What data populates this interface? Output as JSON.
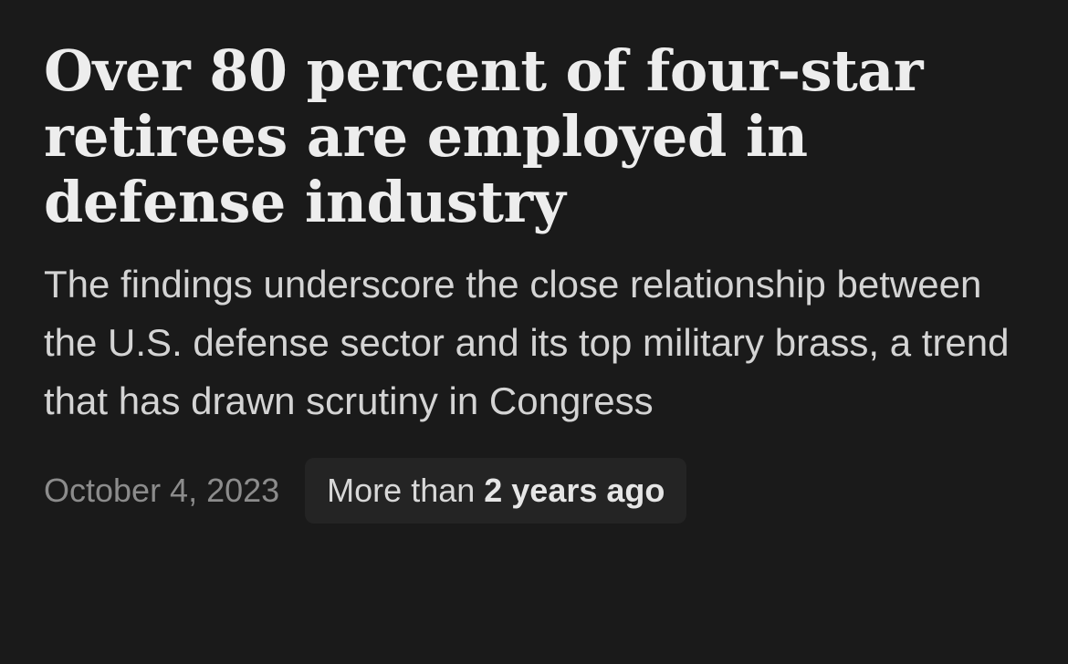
{
  "article": {
    "headline": "Over 80 percent of four-star retirees are employed in defense industry",
    "dek": "The findings underscore the close relationship between the U.S. defense sector and its top military brass, a trend that has drawn scrutiny in Congress",
    "date": "October 4, 2023",
    "age_prefix": "More than",
    "age_value": "2 years ago"
  },
  "colors": {
    "background": "#1a1a1a",
    "headline": "#ededed",
    "dek": "#d4d4d4",
    "date": "#8c8c8c",
    "pill_background": "#242424"
  }
}
